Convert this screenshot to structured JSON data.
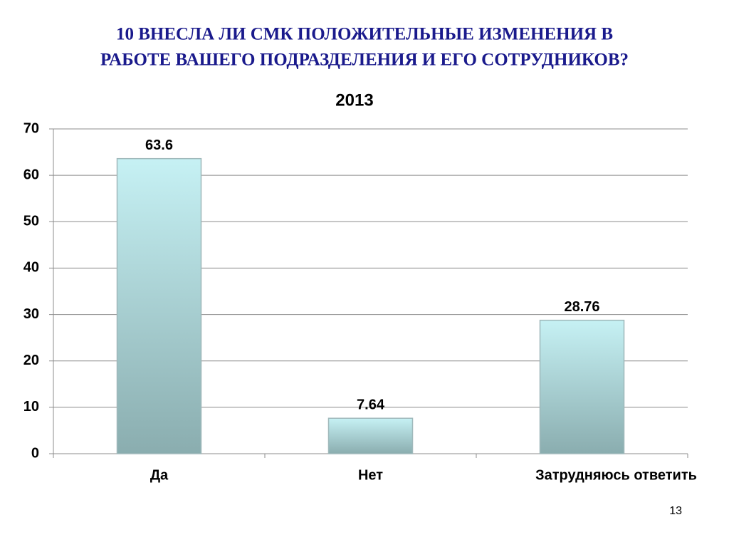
{
  "slide": {
    "title": [
      "10  ВНЕСЛА ЛИ СМК ПОЛОЖИТЕЛЬНЫЕ ИЗМЕНЕНИЯ В",
      "РАБОТЕ ВАШЕГО ПОДРАЗДЕЛЕНИЯ И ЕГО СОТРУДНИКОВ?"
    ],
    "page_number": "13"
  },
  "chart_data": {
    "type": "bar",
    "title": "2013",
    "categories": [
      "Да",
      "Нет",
      "Затрудняюсь ответить"
    ],
    "values": [
      63.6,
      7.64,
      28.76
    ],
    "color": [
      "#c6f1f4",
      "#8aadaf"
    ],
    "ylim": [
      0,
      70
    ],
    "yticks": [
      0,
      10,
      20,
      30,
      40,
      50,
      60,
      70
    ],
    "grid": true
  }
}
